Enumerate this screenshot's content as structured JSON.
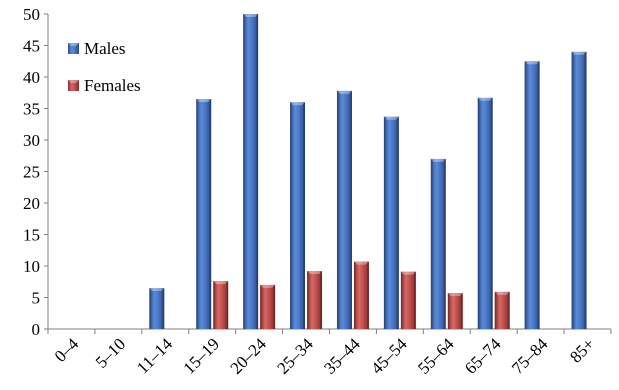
{
  "chart_data": {
    "type": "bar",
    "title": "",
    "xlabel": "",
    "ylabel": "",
    "ylim": [
      0,
      50
    ],
    "yticks": [
      0,
      5,
      10,
      15,
      20,
      25,
      30,
      35,
      40,
      45,
      50
    ],
    "grid": false,
    "legend_position": "top-left",
    "categories": [
      "0–4",
      "5–10",
      "11–14",
      "15–19",
      "20–24",
      "25–34",
      "35–44",
      "45–54",
      "55–64",
      "65–74",
      "75–84",
      "85+"
    ],
    "series": [
      {
        "name": "Males",
        "color": "#4472c4",
        "values": [
          0,
          0,
          6.5,
          36.5,
          50,
          36,
          37.8,
          33.7,
          27,
          36.7,
          42.5,
          44
        ]
      },
      {
        "name": "Females",
        "color": "#c0504d",
        "values": [
          0,
          0,
          0,
          7.6,
          7,
          9.2,
          10.7,
          9.1,
          5.7,
          5.9,
          0,
          0
        ]
      }
    ]
  }
}
